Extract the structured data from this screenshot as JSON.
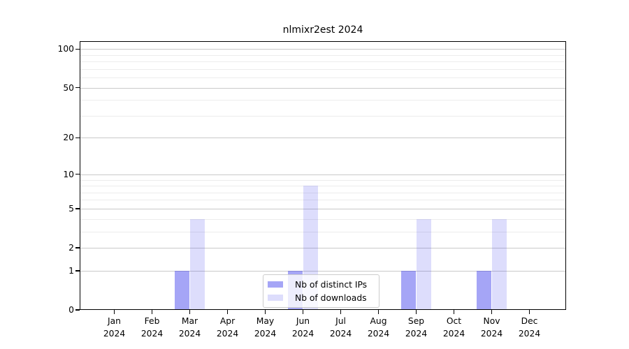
{
  "chart_data": {
    "type": "bar",
    "title": "nlmixr2est 2024",
    "categories": [
      "Jan 2024",
      "Feb 2024",
      "Mar 2024",
      "Apr 2024",
      "May 2024",
      "Jun 2024",
      "Jul 2024",
      "Aug 2024",
      "Sep 2024",
      "Oct 2024",
      "Nov 2024",
      "Dec 2024"
    ],
    "series": [
      {
        "name": "Nb of distinct IPs",
        "values": [
          0,
          0,
          1,
          0,
          0,
          1,
          0,
          0,
          1,
          0,
          1,
          0
        ],
        "color": "rgba(55,55,235,0.45)"
      },
      {
        "name": "Nb of downloads",
        "values": [
          0,
          0,
          4,
          0,
          0,
          8,
          0,
          0,
          4,
          0,
          4,
          0
        ],
        "color": "rgba(55,55,235,0.17)"
      }
    ],
    "xlabel": "",
    "ylabel": "",
    "yscale": "log1p",
    "ylim": [
      0,
      115
    ],
    "yticks": [
      0,
      1,
      2,
      5,
      10,
      20,
      50,
      100
    ],
    "minor_gridlines": [
      3,
      4,
      6,
      7,
      8,
      9,
      30,
      40,
      60,
      70,
      80,
      90
    ],
    "grid": true,
    "legend_position": "lower-center-inside"
  },
  "colors": {
    "bar_distinct_ips_rendered": "#a8a8f4",
    "bar_downloads_rendered": "#dcdcfa",
    "major_grid": "#c9c9c9",
    "minor_grid": "#ececec",
    "spine": "#000000",
    "background": "#ffffff"
  }
}
